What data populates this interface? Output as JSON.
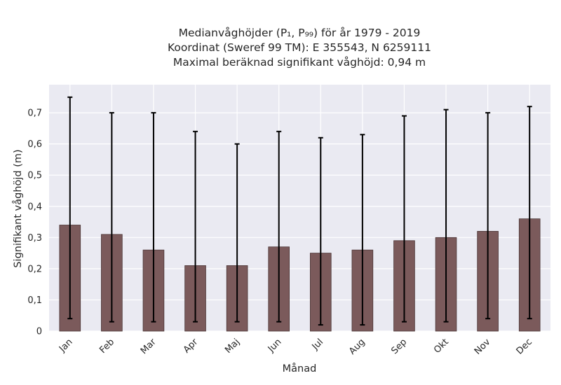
{
  "chart_data": {
    "type": "bar",
    "title_lines": [
      "Medianvåghöjder (P₁, P₉₉) för år 1979 - 2019",
      "Koordinat (Sweref 99 TM): E 355543, N 6259111",
      "Maximal beräknad signifikant våghöjd: 0,94 m"
    ],
    "xlabel": "Månad",
    "ylabel": "Signifikant våghöjd (m)",
    "categories": [
      "Jan",
      "Feb",
      "Mar",
      "Apr",
      "Maj",
      "Jun",
      "Jul",
      "Aug",
      "Sep",
      "Okt",
      "Nov",
      "Dec"
    ],
    "series": [
      {
        "values": [
          0.34,
          0.31,
          0.26,
          0.21,
          0.21,
          0.27,
          0.25,
          0.26,
          0.29,
          0.3,
          0.32,
          0.36
        ],
        "p1": [
          0.04,
          0.03,
          0.03,
          0.03,
          0.03,
          0.03,
          0.02,
          0.02,
          0.03,
          0.03,
          0.04,
          0.04
        ],
        "p99": [
          0.75,
          0.7,
          0.7,
          0.64,
          0.6,
          0.64,
          0.62,
          0.63,
          0.69,
          0.71,
          0.7,
          0.72
        ]
      }
    ],
    "ylim": [
      0,
      0.79
    ],
    "yticks": [
      0,
      0.1,
      0.2,
      0.3,
      0.4,
      0.5,
      0.6,
      0.7
    ],
    "ytick_labels": [
      "0",
      "0,1",
      "0,2",
      "0,3",
      "0,4",
      "0,5",
      "0,6",
      "0,7"
    ],
    "grid": true,
    "bar_color": "#7b5a5b",
    "bar_edge_color": "#4a3535",
    "error_color": "#000000",
    "plot_background": "#eaeaf2",
    "grid_color": "#ffffff"
  }
}
